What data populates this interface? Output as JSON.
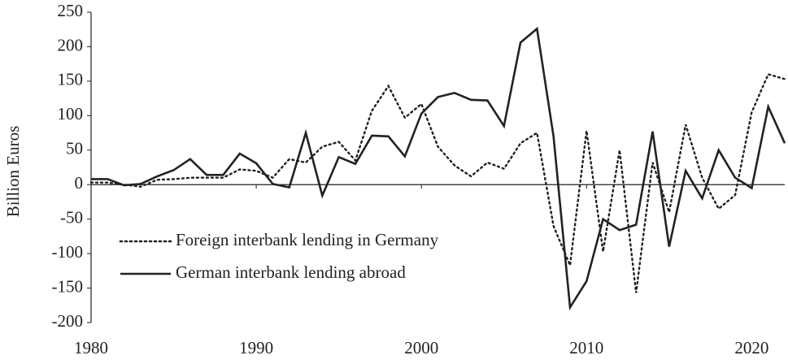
{
  "chart_data": {
    "type": "line",
    "y_label": "Billion Euros",
    "x": [
      1980,
      1981,
      1982,
      1983,
      1984,
      1985,
      1986,
      1987,
      1988,
      1989,
      1990,
      1991,
      1992,
      1993,
      1994,
      1995,
      1996,
      1997,
      1998,
      1999,
      2000,
      2001,
      2002,
      2003,
      2004,
      2005,
      2006,
      2007,
      2008,
      2009,
      2010,
      2011,
      2012,
      2013,
      2014,
      2015,
      2016,
      2017,
      2018,
      2019,
      2020,
      2021,
      2022
    ],
    "series": [
      {
        "name": "Foreign interbank lending in Germany",
        "color": "#222222",
        "style": "dotted",
        "values": [
          3,
          3,
          0,
          -3,
          7,
          8,
          10,
          10,
          10,
          22,
          20,
          10,
          37,
          32,
          55,
          62,
          35,
          107,
          143,
          97,
          117,
          55,
          28,
          12,
          32,
          23,
          60,
          75,
          -60,
          -117,
          78,
          -97,
          50,
          -157,
          32,
          -40,
          87,
          10,
          -35,
          -15,
          105,
          160,
          153
        ]
      },
      {
        "name": "German interbank lending abroad",
        "color": "#222222",
        "style": "solid",
        "values": [
          8,
          8,
          -1,
          1,
          12,
          21,
          37,
          14,
          14,
          45,
          31,
          1,
          -4,
          75,
          -16,
          40,
          30,
          71,
          70,
          41,
          103,
          127,
          133,
          123,
          122,
          85,
          206,
          226,
          70,
          -178,
          -140,
          -50,
          -66,
          -58,
          77,
          -90,
          20,
          -20,
          50,
          10,
          -5,
          113,
          60
        ]
      }
    ],
    "xlim": [
      1980,
      2022
    ],
    "xticks": [
      1980,
      1990,
      2000,
      2010,
      2020
    ],
    "ylim": [
      -200,
      250
    ],
    "yticks": [
      -200,
      -150,
      -100,
      -50,
      0,
      50,
      100,
      150,
      200,
      250
    ],
    "grid": false,
    "legend": "lower-left"
  }
}
